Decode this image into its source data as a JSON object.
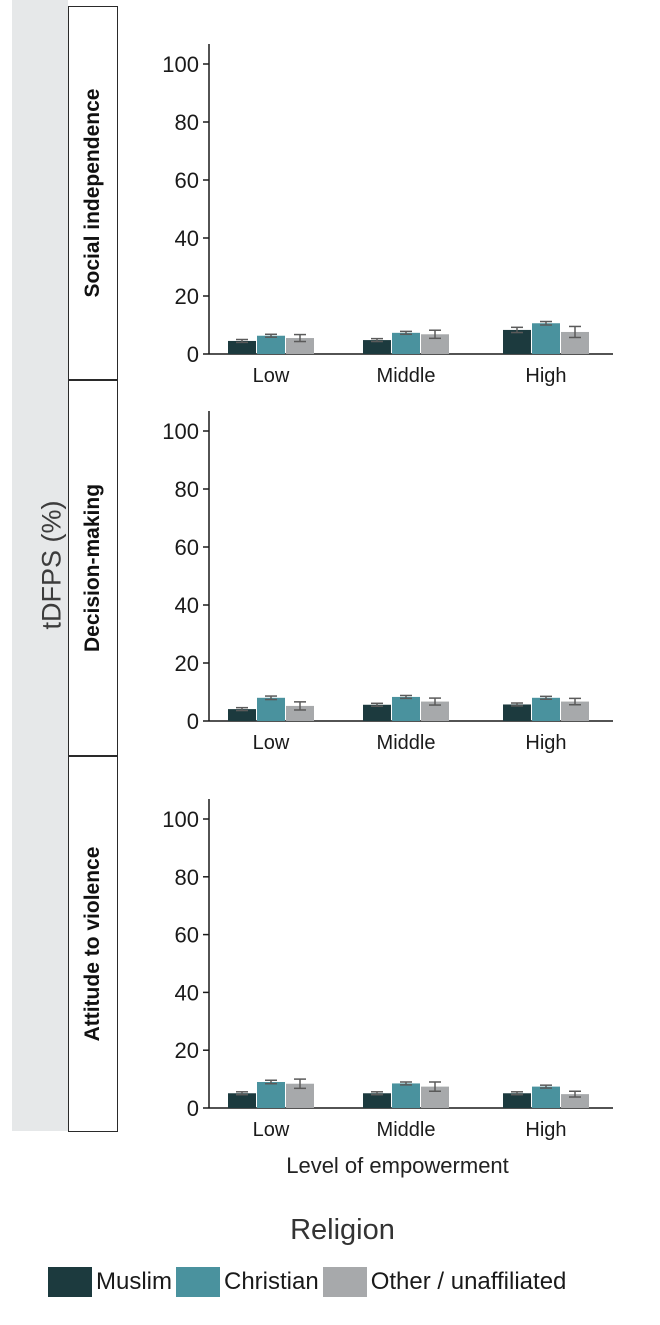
{
  "chart_data": {
    "type": "bar",
    "y_axis_label": "tDFPS (%)",
    "x_axis_label": "Level of empowerment",
    "ylim": [
      0,
      100
    ],
    "yticks": [
      0,
      20,
      40,
      60,
      80,
      100
    ],
    "categories": [
      "Low",
      "Middle",
      "High"
    ],
    "legend": {
      "title": "Religion",
      "placement": "bottom",
      "entries": [
        {
          "label": "Muslim",
          "color": "#1c3a3e"
        },
        {
          "label": "Christian",
          "color": "#4a929e"
        },
        {
          "label": "Other / unaffiliated",
          "color": "#a7a9ab"
        }
      ]
    },
    "facets": [
      {
        "label": "Social independence",
        "series": [
          {
            "name": "Muslim",
            "values": [
              4.5,
              4.8,
              8.3
            ],
            "errors": [
              0.5,
              0.5,
              0.9
            ]
          },
          {
            "name": "Christian",
            "values": [
              6.3,
              7.3,
              10.6
            ],
            "errors": [
              0.5,
              0.5,
              0.6
            ]
          },
          {
            "name": "Other / unaffiliated",
            "values": [
              5.5,
              6.8,
              7.6
            ],
            "errors": [
              1.2,
              1.4,
              1.9
            ]
          }
        ]
      },
      {
        "label": "Decision-making",
        "series": [
          {
            "name": "Muslim",
            "values": [
              4.1,
              5.6,
              5.7
            ],
            "errors": [
              0.5,
              0.5,
              0.5
            ]
          },
          {
            "name": "Christian",
            "values": [
              8.0,
              8.3,
              8.0
            ],
            "errors": [
              0.6,
              0.5,
              0.5
            ]
          },
          {
            "name": "Other / unaffiliated",
            "values": [
              5.2,
              6.7,
              6.7
            ],
            "errors": [
              1.4,
              1.2,
              1.1
            ]
          }
        ]
      },
      {
        "label": "Attitude to violence",
        "series": [
          {
            "name": "Muslim",
            "values": [
              5.1,
              5.1,
              5.1
            ],
            "errors": [
              0.5,
              0.5,
              0.5
            ]
          },
          {
            "name": "Christian",
            "values": [
              9.0,
              8.5,
              7.4
            ],
            "errors": [
              0.6,
              0.5,
              0.5
            ]
          },
          {
            "name": "Other / unaffiliated",
            "values": [
              8.4,
              7.4,
              4.8
            ],
            "errors": [
              1.6,
              1.6,
              1.0
            ]
          }
        ]
      }
    ]
  }
}
